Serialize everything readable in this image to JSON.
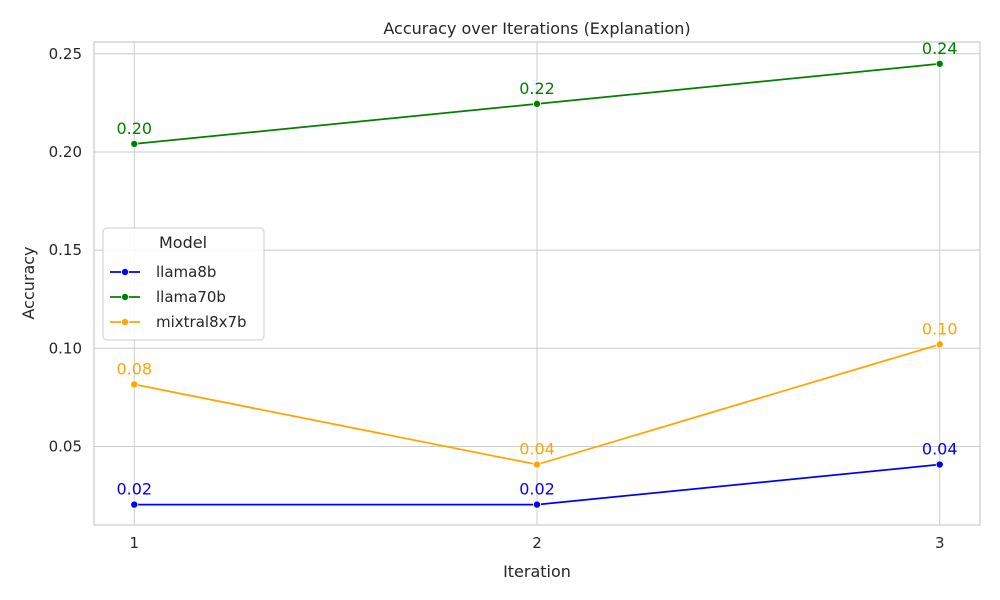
{
  "chart_data": {
    "type": "line",
    "title": "Accuracy over Iterations (Explanation)",
    "xlabel": "Iteration",
    "ylabel": "Accuracy",
    "x": [
      1,
      2,
      3
    ],
    "x_ticks": [
      "1",
      "2",
      "3"
    ],
    "xlim": [
      0.9,
      3.1
    ],
    "ylim": [
      0.01,
      0.256
    ],
    "y_ticks": [
      "0.05",
      "0.10",
      "0.15",
      "0.20",
      "0.25"
    ],
    "y_tick_values": [
      0.05,
      0.1,
      0.15,
      0.2,
      0.25
    ],
    "grid": true,
    "legend": {
      "title": "Model",
      "placement": "center-left"
    },
    "series": [
      {
        "name": "llama8b",
        "color": "#0000ff",
        "values": [
          0.0204,
          0.0204,
          0.0408
        ],
        "labels": [
          "0.02",
          "0.02",
          "0.04"
        ]
      },
      {
        "name": "llama70b",
        "color": "#008000",
        "values": [
          0.2041,
          0.2245,
          0.2449
        ],
        "labels": [
          "0.20",
          "0.22",
          "0.24"
        ]
      },
      {
        "name": "mixtral8x7b",
        "color": "#ffa500",
        "values": [
          0.0816,
          0.0408,
          0.102
        ],
        "labels": [
          "0.08",
          "0.04",
          "0.10"
        ]
      }
    ]
  }
}
